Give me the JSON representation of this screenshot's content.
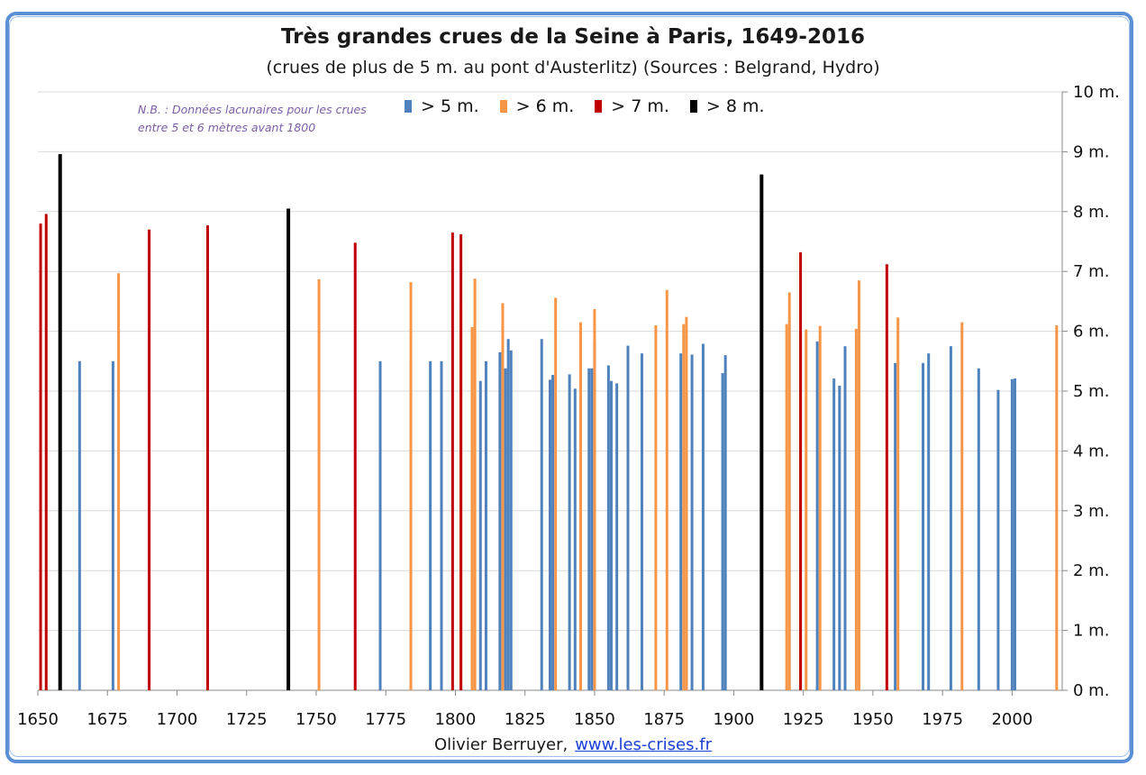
{
  "chart_data": {
    "type": "bar",
    "title": "Très grandes crues de la Seine à Paris, 1649-2016",
    "subtitle": "(crues de plus de 5 m. au pont d'Austerlitz) (Sources : Belgrand, Hydro)",
    "note_line1": "N.B. : Données lacunaires pour les crues",
    "note_line2": "entre 5 et 6 mètres avant 1800",
    "credit_author": "Olivier Berruyer,",
    "credit_link": "www.les-crises.fr",
    "xlim": [
      1650,
      2018
    ],
    "ylim": [
      0,
      10
    ],
    "x_ticks": [
      1650,
      1675,
      1700,
      1725,
      1750,
      1775,
      1800,
      1825,
      1850,
      1875,
      1900,
      1925,
      1950,
      1975,
      2000
    ],
    "x_tick_labels": [
      "1650",
      "1675",
      "1700",
      "1725",
      "1750",
      "1775",
      "1800",
      "1825",
      "1850",
      "1875",
      "1900",
      "1925",
      "1950",
      "1975",
      "2000"
    ],
    "y_ticks": [
      0,
      1,
      2,
      3,
      4,
      5,
      6,
      7,
      8,
      9,
      10
    ],
    "y_tick_labels": [
      "0 m.",
      "1 m.",
      "2 m.",
      "3 m.",
      "4 m.",
      "5 m.",
      "6 m.",
      "7 m.",
      "8 m.",
      "9 m.",
      "10 m."
    ],
    "grid": "horizontal",
    "legend_position": "top-center",
    "series": [
      {
        "name": "> 5 m.",
        "color": "#4f81bd",
        "x": [
          1665,
          1677,
          1773,
          1784,
          1791,
          1795,
          1809,
          1811,
          1816,
          1818,
          1819,
          1820,
          1831,
          1834,
          1835,
          1841,
          1843,
          1848,
          1849,
          1850,
          1855,
          1856,
          1858,
          1862,
          1867,
          1881,
          1883,
          1885,
          1889,
          1896,
          1897,
          1924,
          1930,
          1936,
          1938,
          1940,
          1958,
          1968,
          1970,
          1978,
          1988,
          1995,
          2000,
          2001
        ],
        "values": [
          5.5,
          5.5,
          5.5,
          5.5,
          5.5,
          5.5,
          5.17,
          5.5,
          5.65,
          5.38,
          5.87,
          5.68,
          5.87,
          5.19,
          5.27,
          5.28,
          5.04,
          5.38,
          5.38,
          5.82,
          5.43,
          5.17,
          5.13,
          5.76,
          5.63,
          5.63,
          5.0,
          5.61,
          5.79,
          5.3,
          5.6,
          5.98,
          5.83,
          5.21,
          5.09,
          5.75,
          5.47,
          5.47,
          5.63,
          5.75,
          5.38,
          5.02,
          5.2,
          5.21
        ]
      },
      {
        "name": "> 6 m.",
        "color": "#f79646",
        "x": [
          1679,
          1751,
          1784,
          1802,
          1806,
          1807,
          1817,
          1836,
          1845,
          1850,
          1872,
          1876,
          1882,
          1883,
          1919,
          1920,
          1926,
          1931,
          1944,
          1945,
          1959,
          1982,
          2016
        ],
        "values": [
          6.97,
          6.87,
          6.82,
          6.38,
          6.07,
          6.88,
          6.47,
          6.56,
          6.15,
          6.37,
          6.1,
          6.69,
          6.12,
          6.24,
          6.12,
          6.65,
          6.03,
          6.09,
          6.04,
          6.85,
          6.23,
          6.15,
          6.1
        ]
      },
      {
        "name": "> 7 m.",
        "color": "#c00000",
        "x": [
          1651,
          1653,
          1690,
          1711,
          1764,
          1799,
          1802,
          1924,
          1955
        ],
        "values": [
          7.8,
          7.96,
          7.7,
          7.77,
          7.48,
          7.65,
          7.62,
          7.32,
          7.12
        ]
      },
      {
        "name": "> 8 m.",
        "color": "#000000",
        "x": [
          1658,
          1740,
          1910
        ],
        "values": [
          8.96,
          8.05,
          8.62
        ]
      }
    ]
  }
}
